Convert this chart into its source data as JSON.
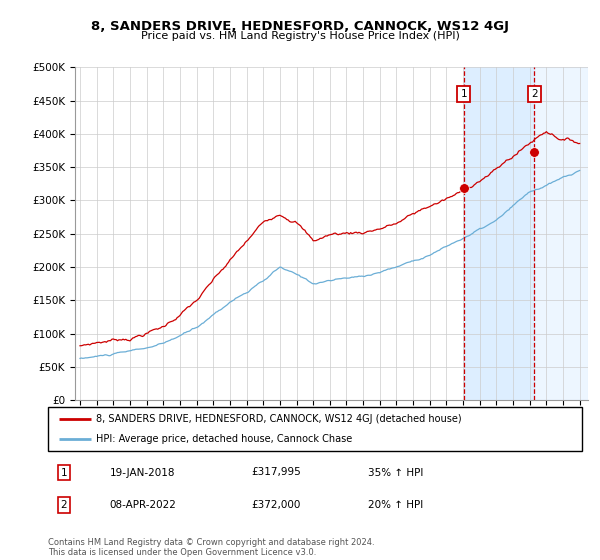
{
  "title": "8, SANDERS DRIVE, HEDNESFORD, CANNOCK, WS12 4GJ",
  "subtitle": "Price paid vs. HM Land Registry's House Price Index (HPI)",
  "ylim": [
    0,
    500000
  ],
  "yticks": [
    0,
    50000,
    100000,
    150000,
    200000,
    250000,
    300000,
    350000,
    400000,
    450000,
    500000
  ],
  "ytick_labels": [
    "£0",
    "£50K",
    "£100K",
    "£150K",
    "£200K",
    "£250K",
    "£300K",
    "£350K",
    "£400K",
    "£450K",
    "£500K"
  ],
  "hpi_color": "#6baed6",
  "price_color": "#cc0000",
  "marker1_date": 2018.05,
  "marker1_price": 317995,
  "marker1_label": "19-JAN-2018",
  "marker1_value_label": "£317,995",
  "marker1_pct": "35% ↑ HPI",
  "marker2_date": 2022.27,
  "marker2_price": 372000,
  "marker2_label": "08-APR-2022",
  "marker2_value_label": "£372,000",
  "marker2_pct": "20% ↑ HPI",
  "legend_line1": "8, SANDERS DRIVE, HEDNESFORD, CANNOCK, WS12 4GJ (detached house)",
  "legend_line2": "HPI: Average price, detached house, Cannock Chase",
  "footer": "Contains HM Land Registry data © Crown copyright and database right 2024.\nThis data is licensed under the Open Government Licence v3.0.",
  "vline1_color": "#cc0000",
  "vline2_color": "#cc0000",
  "shade_color": "#ddeeff",
  "background_color": "#ffffff",
  "xlim_left": 1994.7,
  "xlim_right": 2025.5
}
